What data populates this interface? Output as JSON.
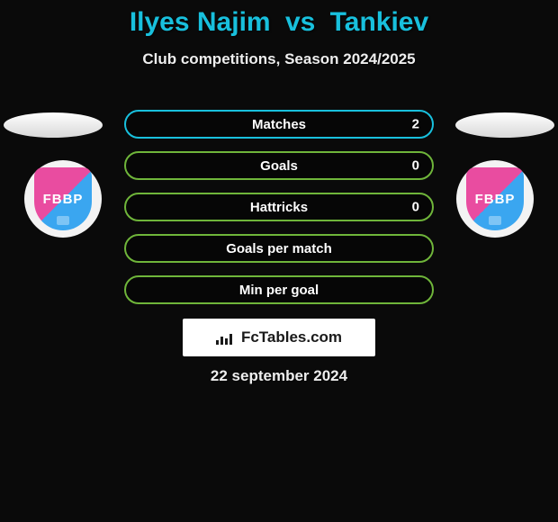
{
  "title": {
    "player1": "Ilyes Najim",
    "vs": "vs",
    "player2": "Tankiev"
  },
  "subtitle": "Club competitions, Season 2024/2025",
  "badge_text": "FBBP",
  "colors": {
    "title": "#18c0dd",
    "row_border_green": "#6fb53a",
    "row_border_cyan": "#18c0dd",
    "text": "#ffffff",
    "bg": "#0a0a0a",
    "logo_bg": "#ffffff"
  },
  "rows": [
    {
      "label": "Matches",
      "left": "",
      "right": "2",
      "border": "#18c0dd"
    },
    {
      "label": "Goals",
      "left": "",
      "right": "0",
      "border": "#6fb53a"
    },
    {
      "label": "Hattricks",
      "left": "",
      "right": "0",
      "border": "#6fb53a"
    },
    {
      "label": "Goals per match",
      "left": "",
      "right": "",
      "border": "#6fb53a"
    },
    {
      "label": "Min per goal",
      "left": "",
      "right": "",
      "border": "#6fb53a"
    }
  ],
  "logo_text": "FcTables.com",
  "date": "22 september 2024"
}
